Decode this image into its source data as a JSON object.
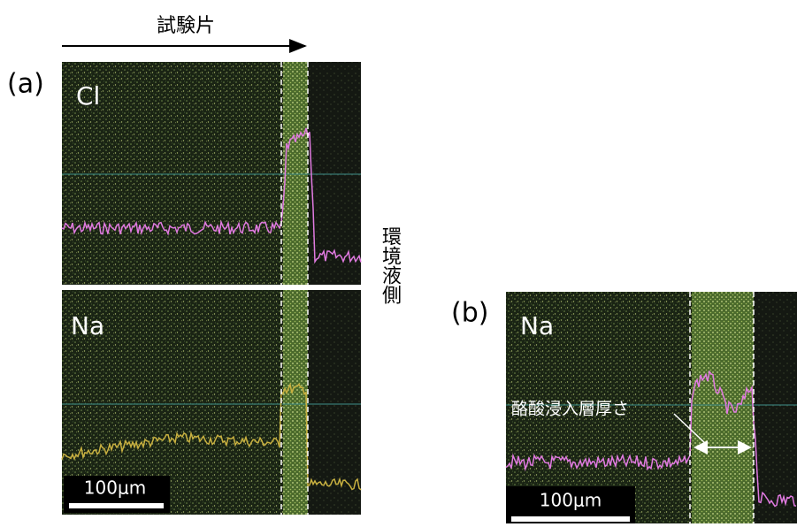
{
  "figure": {
    "arrow_label": "試験片",
    "side_label": "環境液側",
    "panel_a": {
      "tag": "(a)",
      "top_element": "Cl",
      "bottom_element": "Na",
      "scale_bar": "100μm"
    },
    "panel_b": {
      "tag": "(b)",
      "element": "Na",
      "annotation": "酪酸浸入層厚さ",
      "scale_bar": "100μm"
    }
  }
}
